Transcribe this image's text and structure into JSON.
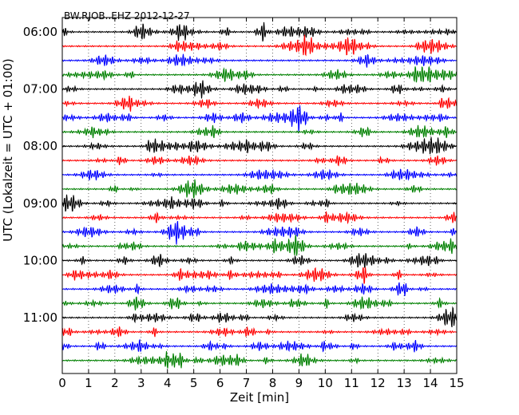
{
  "chart_data": {
    "type": "line",
    "title": "BW.RJOB..EHZ 2012-12-27",
    "xlabel": "Zeit  [min]",
    "ylabel": "UTC (Lokalzeit = UTC + 01:00)",
    "xlim": [
      0,
      15
    ],
    "x_ticks": [
      "0",
      "1",
      "2",
      "3",
      "4",
      "5",
      "6",
      "7",
      "8",
      "9",
      "10",
      "11",
      "12",
      "13",
      "14",
      "15"
    ],
    "y_ticks": [
      "06:00",
      "07:00",
      "08:00",
      "09:00",
      "10:00",
      "11:00"
    ],
    "traces_per_hour": 4,
    "trace_count": 24,
    "trace_colors": [
      "#000000",
      "#ff0000",
      "#0000ff",
      "#008000"
    ],
    "grid": "vertical dotted lines at each minute"
  }
}
